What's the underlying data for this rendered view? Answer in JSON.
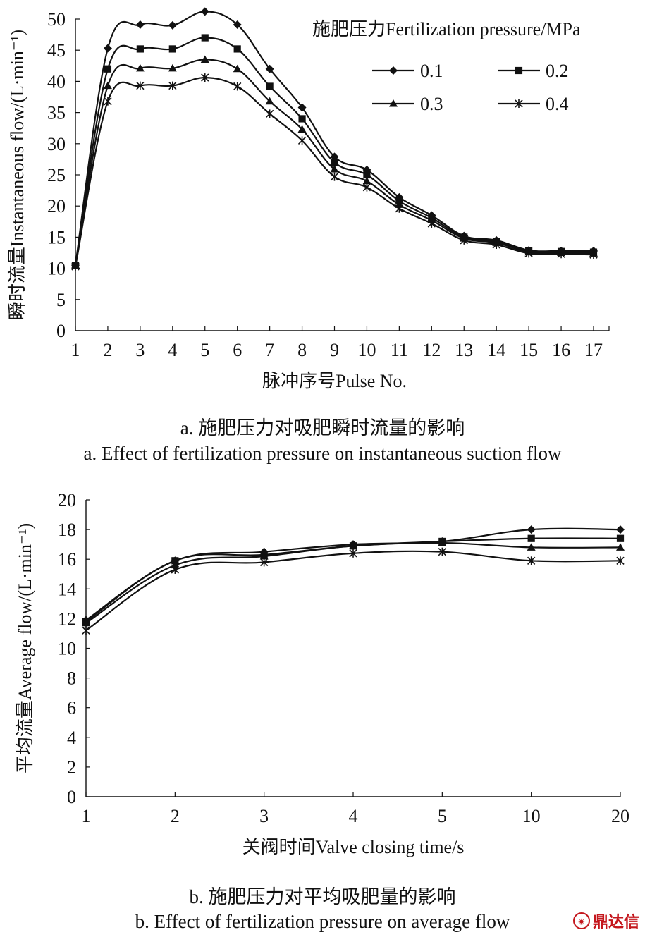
{
  "chart_data": [
    {
      "type": "line",
      "ylabel": "瞬时流量Instantaneous flow/(L·min⁻¹)",
      "xlabel": "脉冲序号Pulse No.",
      "legend_title": "施肥压力Fertilization pressure/MPa",
      "legend_position": "top-right",
      "x": [
        1,
        2,
        3,
        4,
        5,
        6,
        7,
        8,
        9,
        10,
        11,
        12,
        13,
        14,
        15,
        16,
        17
      ],
      "ylim": [
        0,
        50
      ],
      "yticks": [
        0,
        5,
        10,
        15,
        20,
        25,
        30,
        35,
        40,
        45,
        50
      ],
      "grid": false,
      "series": [
        {
          "name": "0.1",
          "marker": "diamond",
          "values": [
            10.5,
            45.3,
            49.1,
            49.0,
            51.2,
            49.1,
            42.0,
            35.8,
            27.9,
            25.8,
            21.4,
            18.5,
            15.2,
            14.5,
            12.9,
            12.8,
            12.8
          ]
        },
        {
          "name": "0.2",
          "marker": "square",
          "values": [
            10.5,
            42.0,
            45.2,
            45.2,
            47.0,
            45.2,
            39.2,
            34.0,
            27.0,
            25.0,
            20.8,
            18.1,
            15.0,
            14.3,
            12.8,
            12.7,
            12.6
          ]
        },
        {
          "name": "0.3",
          "marker": "triangle",
          "values": [
            10.5,
            39.3,
            42.1,
            42.1,
            43.5,
            42.0,
            36.8,
            32.3,
            25.9,
            24.0,
            20.2,
            17.7,
            14.8,
            14.1,
            12.6,
            12.5,
            12.4
          ]
        },
        {
          "name": "0.4",
          "marker": "star",
          "values": [
            10.3,
            36.8,
            39.3,
            39.3,
            40.6,
            39.2,
            34.8,
            30.5,
            24.7,
            23.0,
            19.6,
            17.2,
            14.5,
            13.8,
            12.4,
            12.3,
            12.2
          ]
        }
      ]
    },
    {
      "type": "line",
      "ylabel": "平均流量Average flow/(L·min⁻¹)",
      "xlabel": "关阀时间Valve closing time/s",
      "categories": [
        "1",
        "2",
        "3",
        "4",
        "5",
        "10",
        "20"
      ],
      "ylim": [
        0,
        20
      ],
      "yticks": [
        0,
        2,
        4,
        6,
        8,
        10,
        12,
        14,
        16,
        18,
        20
      ],
      "grid": false,
      "series": [
        {
          "marker": "diamond",
          "values": [
            11.9,
            15.9,
            16.5,
            17.0,
            17.2,
            18.0,
            18.0
          ]
        },
        {
          "marker": "square",
          "values": [
            11.8,
            15.9,
            16.3,
            16.9,
            17.2,
            17.4,
            17.4
          ]
        },
        {
          "marker": "triangle",
          "values": [
            11.7,
            15.6,
            16.2,
            16.9,
            17.1,
            16.8,
            16.8
          ]
        },
        {
          "marker": "star",
          "values": [
            11.2,
            15.3,
            15.8,
            16.4,
            16.5,
            15.9,
            15.9
          ]
        }
      ]
    }
  ],
  "captions": {
    "a_cn": "a.  施肥压力对吸肥瞬时流量的影响",
    "a_en": "a. Effect of fertilization pressure on instantaneous suction flow",
    "b_cn": "b.  施肥压力对平均吸肥量的影响",
    "b_en": "b. Effect of fertilization pressure on average flow"
  },
  "watermark": {
    "icon": "logo-icon",
    "text": "鼎达信",
    "color": "#c4161c"
  }
}
